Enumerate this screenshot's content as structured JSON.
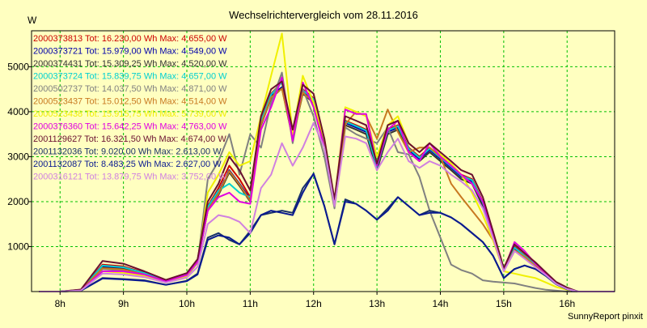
{
  "chart_data": {
    "type": "line",
    "title": "Wechselrichtervergleich vom 28.11.2016",
    "ylabel": "W",
    "xlabel": "",
    "footer": "SunnyReport pinxit",
    "ylim": [
      0,
      5800
    ],
    "xlim": [
      7.55,
      16.75
    ],
    "yticks": [
      1000,
      2000,
      3000,
      4000,
      5000
    ],
    "xticks": [
      {
        "v": 8,
        "label": "8h"
      },
      {
        "v": 9,
        "label": "9h"
      },
      {
        "v": 10,
        "label": "10h"
      },
      {
        "v": 11,
        "label": "11h"
      },
      {
        "v": 12,
        "label": "12h"
      },
      {
        "v": 13,
        "label": "13h"
      },
      {
        "v": 14,
        "label": "14h"
      },
      {
        "v": 15,
        "label": "15h"
      },
      {
        "v": 16,
        "label": "16h"
      }
    ],
    "grid": true,
    "x": [
      7.67,
      8.0,
      8.33,
      8.67,
      9.0,
      9.33,
      9.67,
      10.0,
      10.17,
      10.33,
      10.5,
      10.67,
      10.83,
      11.0,
      11.17,
      11.33,
      11.5,
      11.67,
      11.83,
      12.0,
      12.17,
      12.33,
      12.5,
      12.67,
      12.83,
      13.0,
      13.17,
      13.33,
      13.5,
      13.67,
      13.83,
      14.0,
      14.17,
      14.33,
      14.5,
      14.67,
      14.83,
      15.0,
      15.17,
      15.33,
      15.5,
      15.67,
      15.83,
      16.0,
      16.17,
      16.33,
      16.5,
      16.75
    ],
    "series": [
      {
        "name": "2000373813 Tot: 16.230,00 Wh Max: 4.655,00 W",
        "color": "#cc0000",
        "values": [
          0,
          0,
          40,
          600,
          560,
          420,
          250,
          400,
          700,
          1900,
          2300,
          2800,
          2500,
          2100,
          3800,
          4400,
          4655,
          3500,
          4500,
          4300,
          3300,
          2000,
          3800,
          3700,
          3600,
          2800,
          3600,
          3700,
          3200,
          3000,
          3200,
          3000,
          2800,
          2600,
          2500,
          2000,
          1300,
          500,
          1000,
          800,
          600,
          400,
          200,
          80,
          0,
          0,
          0,
          0
        ]
      },
      {
        "name": "2000373721 Tot: 15.979,00 Wh Max: 4.549,00 W",
        "color": "#0000aa",
        "values": [
          0,
          0,
          35,
          550,
          520,
          400,
          240,
          380,
          680,
          1850,
          2200,
          2700,
          2400,
          2050,
          3750,
          4350,
          4549,
          3450,
          4450,
          4250,
          3250,
          1950,
          3750,
          3650,
          3550,
          2750,
          3550,
          3650,
          3150,
          2950,
          3150,
          2950,
          2750,
          2550,
          2450,
          1950,
          1250,
          480,
          950,
          780,
          580,
          380,
          190,
          70,
          0,
          0,
          0,
          0
        ]
      },
      {
        "name": "2000374431 Tot: 15.309,25 Wh Max: 4.520,00 W",
        "color": "#333333",
        "values": [
          0,
          0,
          30,
          530,
          500,
          390,
          230,
          360,
          660,
          1800,
          2150,
          2650,
          2350,
          2000,
          3700,
          4300,
          4520,
          3400,
          4400,
          4200,
          3200,
          1900,
          3700,
          3600,
          3500,
          2700,
          3500,
          3600,
          3100,
          2900,
          3100,
          2900,
          2700,
          2500,
          2400,
          1900,
          1200,
          460,
          900,
          760,
          560,
          360,
          180,
          60,
          0,
          0,
          0,
          0
        ]
      },
      {
        "name": "2000373724 Tot: 15.839,75 Wh Max: 4.657,00 W",
        "color": "#00d0d0",
        "values": [
          0,
          0,
          38,
          580,
          540,
          410,
          245,
          390,
          690,
          1880,
          2250,
          2400,
          2200,
          2100,
          3780,
          4380,
          4657,
          3480,
          4480,
          4280,
          3280,
          1980,
          3780,
          3680,
          3580,
          2780,
          3580,
          3680,
          3180,
          2980,
          3180,
          2980,
          2780,
          2580,
          2480,
          1980,
          1280,
          490,
          980,
          790,
          590,
          390,
          195,
          75,
          0,
          0,
          0,
          0
        ]
      },
      {
        "name": "2000502737 Tot: 14.037,50 Wh Max: 4.871,00 W",
        "color": "#808080",
        "values": [
          0,
          0,
          25,
          500,
          470,
          370,
          220,
          340,
          640,
          2500,
          2900,
          3500,
          2600,
          3500,
          3200,
          4200,
          4871,
          3300,
          4500,
          3900,
          3000,
          1850,
          3650,
          3500,
          3400,
          3300,
          3650,
          3100,
          3050,
          2550,
          1800,
          1200,
          600,
          480,
          400,
          250,
          220,
          200,
          180,
          130,
          80,
          40,
          20,
          0,
          0,
          0,
          0,
          0
        ]
      },
      {
        "name": "2000523437 Tot: 15.012,50 Wh Max: 4.514,00 W",
        "color": "#c87820",
        "values": [
          0,
          0,
          30,
          520,
          490,
          380,
          235,
          370,
          670,
          1820,
          2180,
          2680,
          2380,
          2020,
          3720,
          4320,
          4514,
          3420,
          4420,
          4220,
          3220,
          1920,
          3720,
          4000,
          3900,
          3400,
          4050,
          3550,
          3100,
          3200,
          3200,
          3000,
          2400,
          2100,
          1800,
          1500,
          1150,
          470,
          920,
          770,
          570,
          370,
          185,
          65,
          0,
          0,
          0,
          0
        ]
      },
      {
        "name": "2000523438 Tot: 15.915,75 Wh Max: 5.739,00 W",
        "color": "#f0f000",
        "values": [
          0,
          0,
          20,
          450,
          420,
          350,
          220,
          350,
          650,
          2200,
          2600,
          3100,
          2800,
          2900,
          3900,
          4800,
          5739,
          3500,
          4800,
          4200,
          3400,
          2000,
          4100,
          4000,
          3900,
          3000,
          3700,
          3900,
          3300,
          3100,
          3300,
          3050,
          2850,
          2600,
          2200,
          1700,
          1150,
          450,
          400,
          350,
          300,
          200,
          100,
          40,
          0,
          0,
          0,
          0
        ]
      },
      {
        "name": "2000376360 Tot: 15.642,25 Wh Max: 4.763,00 W",
        "color": "#e000e0",
        "values": [
          0,
          0,
          25,
          450,
          450,
          380,
          230,
          370,
          660,
          1800,
          2100,
          2200,
          2000,
          1950,
          3600,
          4100,
          4763,
          3350,
          4650,
          4100,
          3200,
          1950,
          4050,
          3950,
          3950,
          2800,
          3600,
          3800,
          3100,
          2900,
          3300,
          3000,
          2800,
          2600,
          2400,
          2000,
          1300,
          480,
          1100,
          900,
          620,
          400,
          190,
          60,
          0,
          0,
          0,
          0
        ]
      },
      {
        "name": "2001129627 Tot: 16.321,50 Wh Max: 4.674,00 W",
        "color": "#6a1030",
        "values": [
          0,
          0,
          45,
          680,
          620,
          450,
          260,
          410,
          720,
          2000,
          2400,
          3000,
          2700,
          2250,
          3900,
          4500,
          4674,
          3600,
          4600,
          4400,
          3400,
          2050,
          3900,
          3800,
          3700,
          2850,
          3700,
          3800,
          3300,
          3100,
          3300,
          3100,
          2900,
          2700,
          2600,
          2100,
          1350,
          520,
          1050,
          850,
          650,
          420,
          210,
          90,
          0,
          0,
          0,
          0
        ]
      },
      {
        "name": "2001132036 Tot: 9.020,00 Wh Max: 2.613,00 W",
        "color": "#18306a",
        "values": [
          0,
          0,
          20,
          300,
          280,
          250,
          150,
          240,
          400,
          1200,
          1300,
          1150,
          1050,
          1350,
          1700,
          1750,
          1800,
          1750,
          2300,
          2613,
          1900,
          1050,
          2050,
          1950,
          1800,
          1600,
          1850,
          2100,
          1900,
          1700,
          1800,
          1750,
          1650,
          1500,
          1300,
          1100,
          800,
          300,
          500,
          580,
          500,
          350,
          170,
          50,
          0,
          0,
          0,
          0
        ]
      },
      {
        "name": "2001132087 Tot: 8.483,25 Wh Max: 2.627,00 W",
        "color": "#0a1a90",
        "values": [
          0,
          0,
          20,
          290,
          270,
          240,
          150,
          230,
          380,
          1150,
          1250,
          1200,
          1050,
          1300,
          1700,
          1800,
          1750,
          1700,
          2200,
          2627,
          1900,
          1050,
          2000,
          1950,
          1800,
          1600,
          1800,
          2100,
          1900,
          1700,
          1750,
          1750,
          1650,
          1500,
          1300,
          1100,
          800,
          300,
          500,
          580,
          500,
          340,
          160,
          50,
          0,
          0,
          0,
          0
        ]
      },
      {
        "name": "2000316121 Tot: 13.879,75 Wh Max: 3.752,00 W",
        "color": "#d080e0",
        "values": [
          0,
          0,
          25,
          400,
          380,
          320,
          200,
          310,
          550,
          1500,
          1700,
          1650,
          1550,
          1300,
          2300,
          2600,
          3300,
          2800,
          3200,
          3752,
          3200,
          1900,
          3450,
          3400,
          3300,
          2700,
          3100,
          3400,
          2900,
          2750,
          2900,
          2800,
          2600,
          2450,
          2250,
          1850,
          1200,
          450,
          900,
          730,
          540,
          360,
          170,
          55,
          0,
          0,
          0,
          0
        ]
      }
    ]
  }
}
